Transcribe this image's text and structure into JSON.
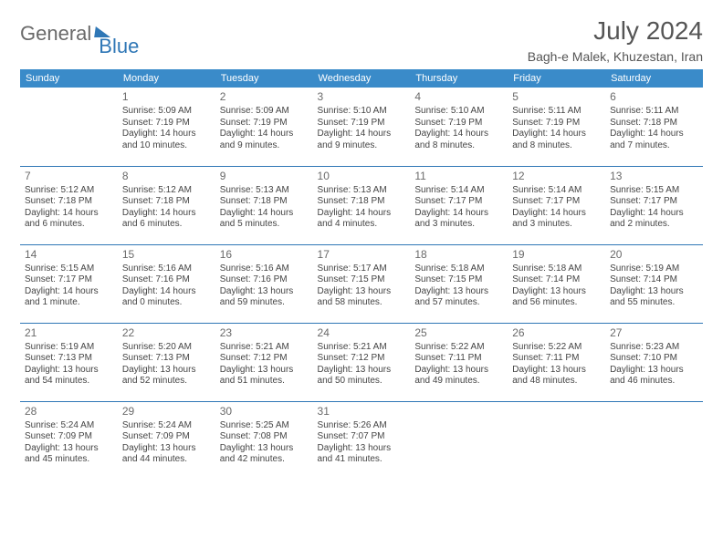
{
  "logo": {
    "text1": "General",
    "text2": "Blue"
  },
  "title": "July 2024",
  "location": "Bagh-e Malek, Khuzestan, Iran",
  "colors": {
    "header_bg": "#3a8bc9",
    "rule": "#2f77b6",
    "title_color": "#555555",
    "text_color": "#444444"
  },
  "dayHeaders": [
    "Sunday",
    "Monday",
    "Tuesday",
    "Wednesday",
    "Thursday",
    "Friday",
    "Saturday"
  ],
  "weeks": [
    [
      null,
      {
        "n": "1",
        "sr": "5:09 AM",
        "ss": "7:19 PM",
        "dl": "14 hours and 10 minutes."
      },
      {
        "n": "2",
        "sr": "5:09 AM",
        "ss": "7:19 PM",
        "dl": "14 hours and 9 minutes."
      },
      {
        "n": "3",
        "sr": "5:10 AM",
        "ss": "7:19 PM",
        "dl": "14 hours and 9 minutes."
      },
      {
        "n": "4",
        "sr": "5:10 AM",
        "ss": "7:19 PM",
        "dl": "14 hours and 8 minutes."
      },
      {
        "n": "5",
        "sr": "5:11 AM",
        "ss": "7:19 PM",
        "dl": "14 hours and 8 minutes."
      },
      {
        "n": "6",
        "sr": "5:11 AM",
        "ss": "7:18 PM",
        "dl": "14 hours and 7 minutes."
      }
    ],
    [
      {
        "n": "7",
        "sr": "5:12 AM",
        "ss": "7:18 PM",
        "dl": "14 hours and 6 minutes."
      },
      {
        "n": "8",
        "sr": "5:12 AM",
        "ss": "7:18 PM",
        "dl": "14 hours and 6 minutes."
      },
      {
        "n": "9",
        "sr": "5:13 AM",
        "ss": "7:18 PM",
        "dl": "14 hours and 5 minutes."
      },
      {
        "n": "10",
        "sr": "5:13 AM",
        "ss": "7:18 PM",
        "dl": "14 hours and 4 minutes."
      },
      {
        "n": "11",
        "sr": "5:14 AM",
        "ss": "7:17 PM",
        "dl": "14 hours and 3 minutes."
      },
      {
        "n": "12",
        "sr": "5:14 AM",
        "ss": "7:17 PM",
        "dl": "14 hours and 3 minutes."
      },
      {
        "n": "13",
        "sr": "5:15 AM",
        "ss": "7:17 PM",
        "dl": "14 hours and 2 minutes."
      }
    ],
    [
      {
        "n": "14",
        "sr": "5:15 AM",
        "ss": "7:17 PM",
        "dl": "14 hours and 1 minute."
      },
      {
        "n": "15",
        "sr": "5:16 AM",
        "ss": "7:16 PM",
        "dl": "14 hours and 0 minutes."
      },
      {
        "n": "16",
        "sr": "5:16 AM",
        "ss": "7:16 PM",
        "dl": "13 hours and 59 minutes."
      },
      {
        "n": "17",
        "sr": "5:17 AM",
        "ss": "7:15 PM",
        "dl": "13 hours and 58 minutes."
      },
      {
        "n": "18",
        "sr": "5:18 AM",
        "ss": "7:15 PM",
        "dl": "13 hours and 57 minutes."
      },
      {
        "n": "19",
        "sr": "5:18 AM",
        "ss": "7:14 PM",
        "dl": "13 hours and 56 minutes."
      },
      {
        "n": "20",
        "sr": "5:19 AM",
        "ss": "7:14 PM",
        "dl": "13 hours and 55 minutes."
      }
    ],
    [
      {
        "n": "21",
        "sr": "5:19 AM",
        "ss": "7:13 PM",
        "dl": "13 hours and 54 minutes."
      },
      {
        "n": "22",
        "sr": "5:20 AM",
        "ss": "7:13 PM",
        "dl": "13 hours and 52 minutes."
      },
      {
        "n": "23",
        "sr": "5:21 AM",
        "ss": "7:12 PM",
        "dl": "13 hours and 51 minutes."
      },
      {
        "n": "24",
        "sr": "5:21 AM",
        "ss": "7:12 PM",
        "dl": "13 hours and 50 minutes."
      },
      {
        "n": "25",
        "sr": "5:22 AM",
        "ss": "7:11 PM",
        "dl": "13 hours and 49 minutes."
      },
      {
        "n": "26",
        "sr": "5:22 AM",
        "ss": "7:11 PM",
        "dl": "13 hours and 48 minutes."
      },
      {
        "n": "27",
        "sr": "5:23 AM",
        "ss": "7:10 PM",
        "dl": "13 hours and 46 minutes."
      }
    ],
    [
      {
        "n": "28",
        "sr": "5:24 AM",
        "ss": "7:09 PM",
        "dl": "13 hours and 45 minutes."
      },
      {
        "n": "29",
        "sr": "5:24 AM",
        "ss": "7:09 PM",
        "dl": "13 hours and 44 minutes."
      },
      {
        "n": "30",
        "sr": "5:25 AM",
        "ss": "7:08 PM",
        "dl": "13 hours and 42 minutes."
      },
      {
        "n": "31",
        "sr": "5:26 AM",
        "ss": "7:07 PM",
        "dl": "13 hours and 41 minutes."
      },
      null,
      null,
      null
    ]
  ],
  "labels": {
    "sunrise": "Sunrise: ",
    "sunset": "Sunset: ",
    "daylight": "Daylight: "
  }
}
